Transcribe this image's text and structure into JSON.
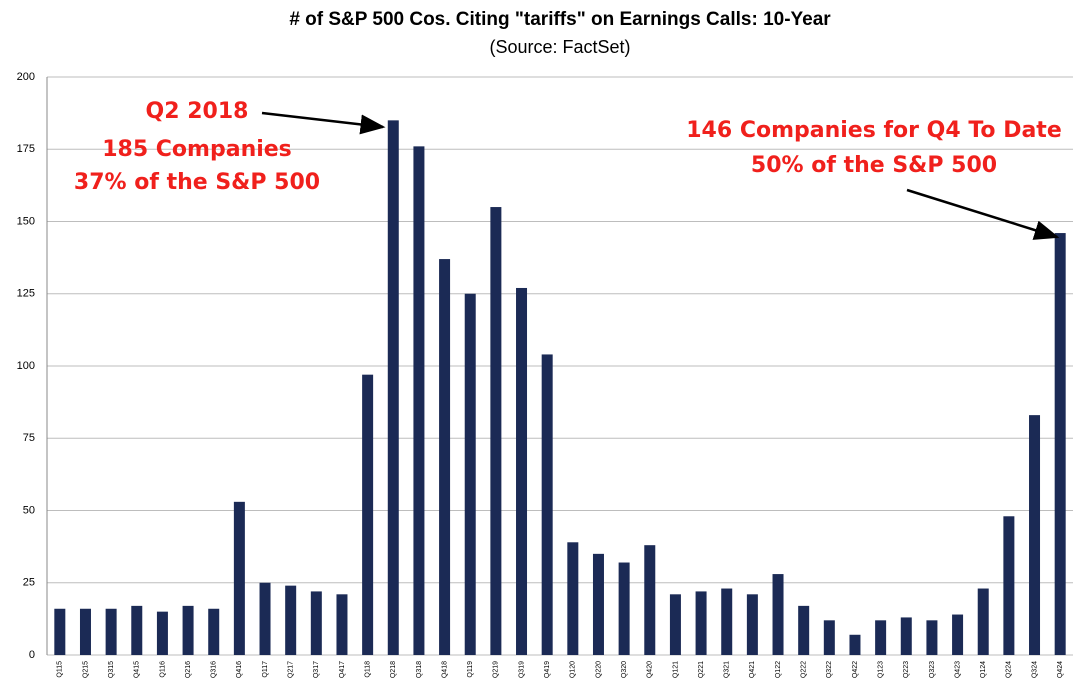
{
  "chart_data": {
    "type": "bar",
    "title": "# of S&P 500 Cos. Citing \"tariffs\" on Earnings Calls: 10-Year",
    "subtitle": "(Source: FactSet)",
    "categories": [
      "Q115",
      "Q215",
      "Q315",
      "Q415",
      "Q116",
      "Q216",
      "Q316",
      "Q416",
      "Q117",
      "Q217",
      "Q317",
      "Q417",
      "Q118",
      "Q218",
      "Q318",
      "Q418",
      "Q119",
      "Q219",
      "Q319",
      "Q419",
      "Q120",
      "Q220",
      "Q320",
      "Q420",
      "Q121",
      "Q221",
      "Q321",
      "Q421",
      "Q122",
      "Q222",
      "Q322",
      "Q422",
      "Q123",
      "Q223",
      "Q323",
      "Q423",
      "Q124",
      "Q224",
      "Q324",
      "Q424"
    ],
    "values": [
      16,
      16,
      16,
      17,
      15,
      17,
      16,
      53,
      25,
      24,
      22,
      21,
      97,
      185,
      176,
      137,
      125,
      155,
      127,
      104,
      39,
      35,
      32,
      38,
      21,
      22,
      23,
      21,
      28,
      17,
      12,
      7,
      12,
      13,
      12,
      14,
      23,
      48,
      83,
      146
    ],
    "color": "#1b2a55",
    "ylim": [
      0,
      200
    ],
    "yticks": [
      0,
      25,
      50,
      75,
      100,
      125,
      150,
      175,
      200
    ],
    "grid": true,
    "annotations": [
      {
        "lines": [
          "Q2 2018",
          "185 Companies",
          "37% of the S&P 500"
        ]
      },
      {
        "lines": [
          "146 Companies for Q4 To Date",
          "50% of the S&P 500"
        ]
      }
    ]
  }
}
